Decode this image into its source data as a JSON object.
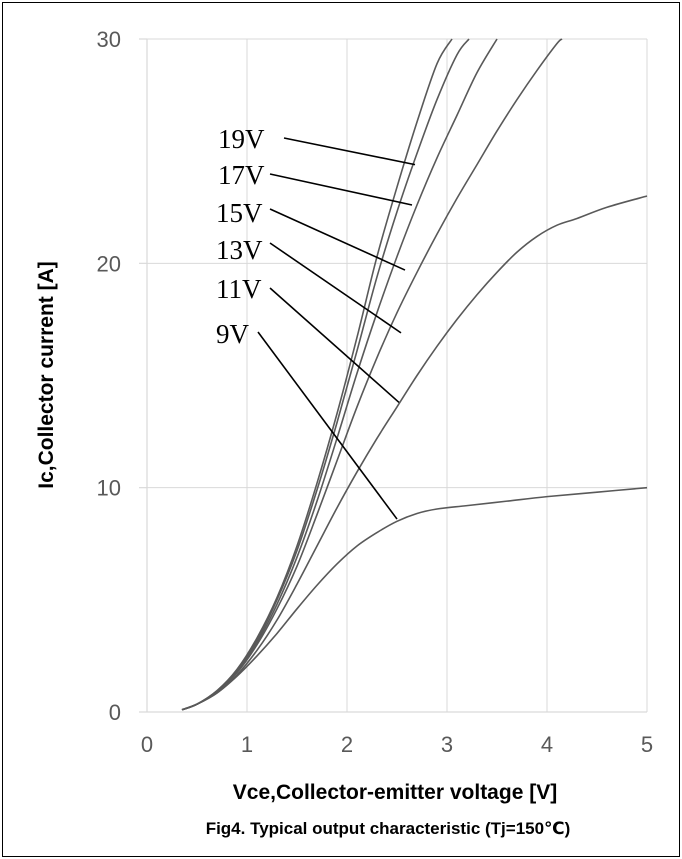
{
  "chart_data": {
    "type": "line",
    "title": "Fig4. Typical output characteristic (Tj=150℃)",
    "xlabel": "Vce,Collector-emitter voltage [V]",
    "ylabel": "Ic,Collector current [A]",
    "xlim": [
      0,
      5
    ],
    "ylim": [
      0,
      30
    ],
    "xticks": [
      0,
      1,
      2,
      3,
      4,
      5
    ],
    "yticks": [
      0,
      10,
      20,
      30
    ],
    "grid": true,
    "colors": {
      "curve": "#595959",
      "grid": "#d9d9d9",
      "leader": "#000000"
    },
    "series": [
      {
        "name": "19V",
        "x": [
          0.35,
          0.5,
          0.7,
          0.9,
          1.1,
          1.3,
          1.5,
          1.7,
          1.9,
          2.1,
          2.3,
          2.5,
          2.7,
          2.9,
          3.05
        ],
        "y": [
          0.1,
          0.35,
          0.95,
          1.9,
          3.3,
          5.1,
          7.4,
          10.2,
          13.3,
          16.7,
          20.3,
          23.4,
          26.3,
          28.9,
          30.0
        ]
      },
      {
        "name": "17V",
        "x": [
          0.35,
          0.5,
          0.7,
          0.9,
          1.1,
          1.3,
          1.5,
          1.7,
          1.9,
          2.1,
          2.3,
          2.5,
          2.7,
          2.9,
          3.1,
          3.22
        ],
        "y": [
          0.1,
          0.35,
          0.95,
          1.85,
          3.2,
          5.0,
          7.2,
          9.9,
          12.9,
          16.1,
          19.4,
          22.3,
          24.9,
          27.3,
          29.3,
          30.0
        ]
      },
      {
        "name": "15V",
        "x": [
          0.35,
          0.5,
          0.7,
          0.9,
          1.1,
          1.3,
          1.5,
          1.7,
          1.9,
          2.1,
          2.3,
          2.5,
          2.7,
          2.9,
          3.1,
          3.3,
          3.5
        ],
        "y": [
          0.1,
          0.35,
          0.9,
          1.8,
          3.1,
          4.8,
          6.9,
          9.4,
          12.2,
          15.1,
          17.8,
          20.3,
          22.6,
          24.7,
          26.6,
          28.5,
          30.0
        ]
      },
      {
        "name": "13V",
        "x": [
          0.35,
          0.5,
          0.7,
          0.9,
          1.1,
          1.3,
          1.5,
          1.7,
          1.9,
          2.1,
          2.3,
          2.5,
          2.7,
          2.9,
          3.1,
          3.3,
          3.5,
          3.7,
          3.9,
          4.1,
          4.15
        ],
        "y": [
          0.1,
          0.35,
          0.9,
          1.75,
          3.0,
          4.6,
          6.5,
          8.8,
          11.2,
          13.6,
          15.8,
          17.8,
          19.6,
          21.3,
          22.9,
          24.4,
          25.9,
          27.3,
          28.6,
          29.8,
          30.0
        ]
      },
      {
        "name": "11V",
        "x": [
          0.35,
          0.5,
          0.7,
          0.9,
          1.1,
          1.3,
          1.5,
          1.7,
          1.9,
          2.1,
          2.3,
          2.5,
          2.7,
          2.9,
          3.1,
          3.3,
          3.5,
          3.7,
          3.9,
          4.1,
          4.3,
          4.6,
          5.0
        ],
        "y": [
          0.1,
          0.35,
          0.85,
          1.65,
          2.75,
          4.1,
          5.7,
          7.4,
          9.1,
          10.7,
          12.2,
          13.6,
          15.0,
          16.3,
          17.5,
          18.6,
          19.6,
          20.5,
          21.2,
          21.7,
          22.0,
          22.5,
          23.0
        ]
      },
      {
        "name": "9V",
        "x": [
          0.35,
          0.5,
          0.7,
          0.9,
          1.1,
          1.3,
          1.5,
          1.7,
          1.9,
          2.1,
          2.3,
          2.5,
          2.7,
          2.9,
          3.2,
          3.6,
          4.0,
          4.5,
          5.0
        ],
        "y": [
          0.1,
          0.35,
          0.85,
          1.6,
          2.5,
          3.5,
          4.6,
          5.65,
          6.6,
          7.4,
          8.0,
          8.5,
          8.85,
          9.05,
          9.2,
          9.4,
          9.6,
          9.8,
          10.0
        ]
      }
    ],
    "annotations": [
      {
        "text": "19V",
        "points_to_x": 2.68,
        "points_to_y": 24.4
      },
      {
        "text": "17V",
        "points_to_x": 2.65,
        "points_to_y": 22.6
      },
      {
        "text": "15V",
        "points_to_x": 2.58,
        "points_to_y": 19.7
      },
      {
        "text": "13V",
        "points_to_x": 2.54,
        "points_to_y": 16.9
      },
      {
        "text": "11V",
        "points_to_x": 2.52,
        "points_to_y": 13.8
      },
      {
        "text": "9V",
        "points_to_x": 2.5,
        "points_to_y": 8.6
      }
    ]
  }
}
